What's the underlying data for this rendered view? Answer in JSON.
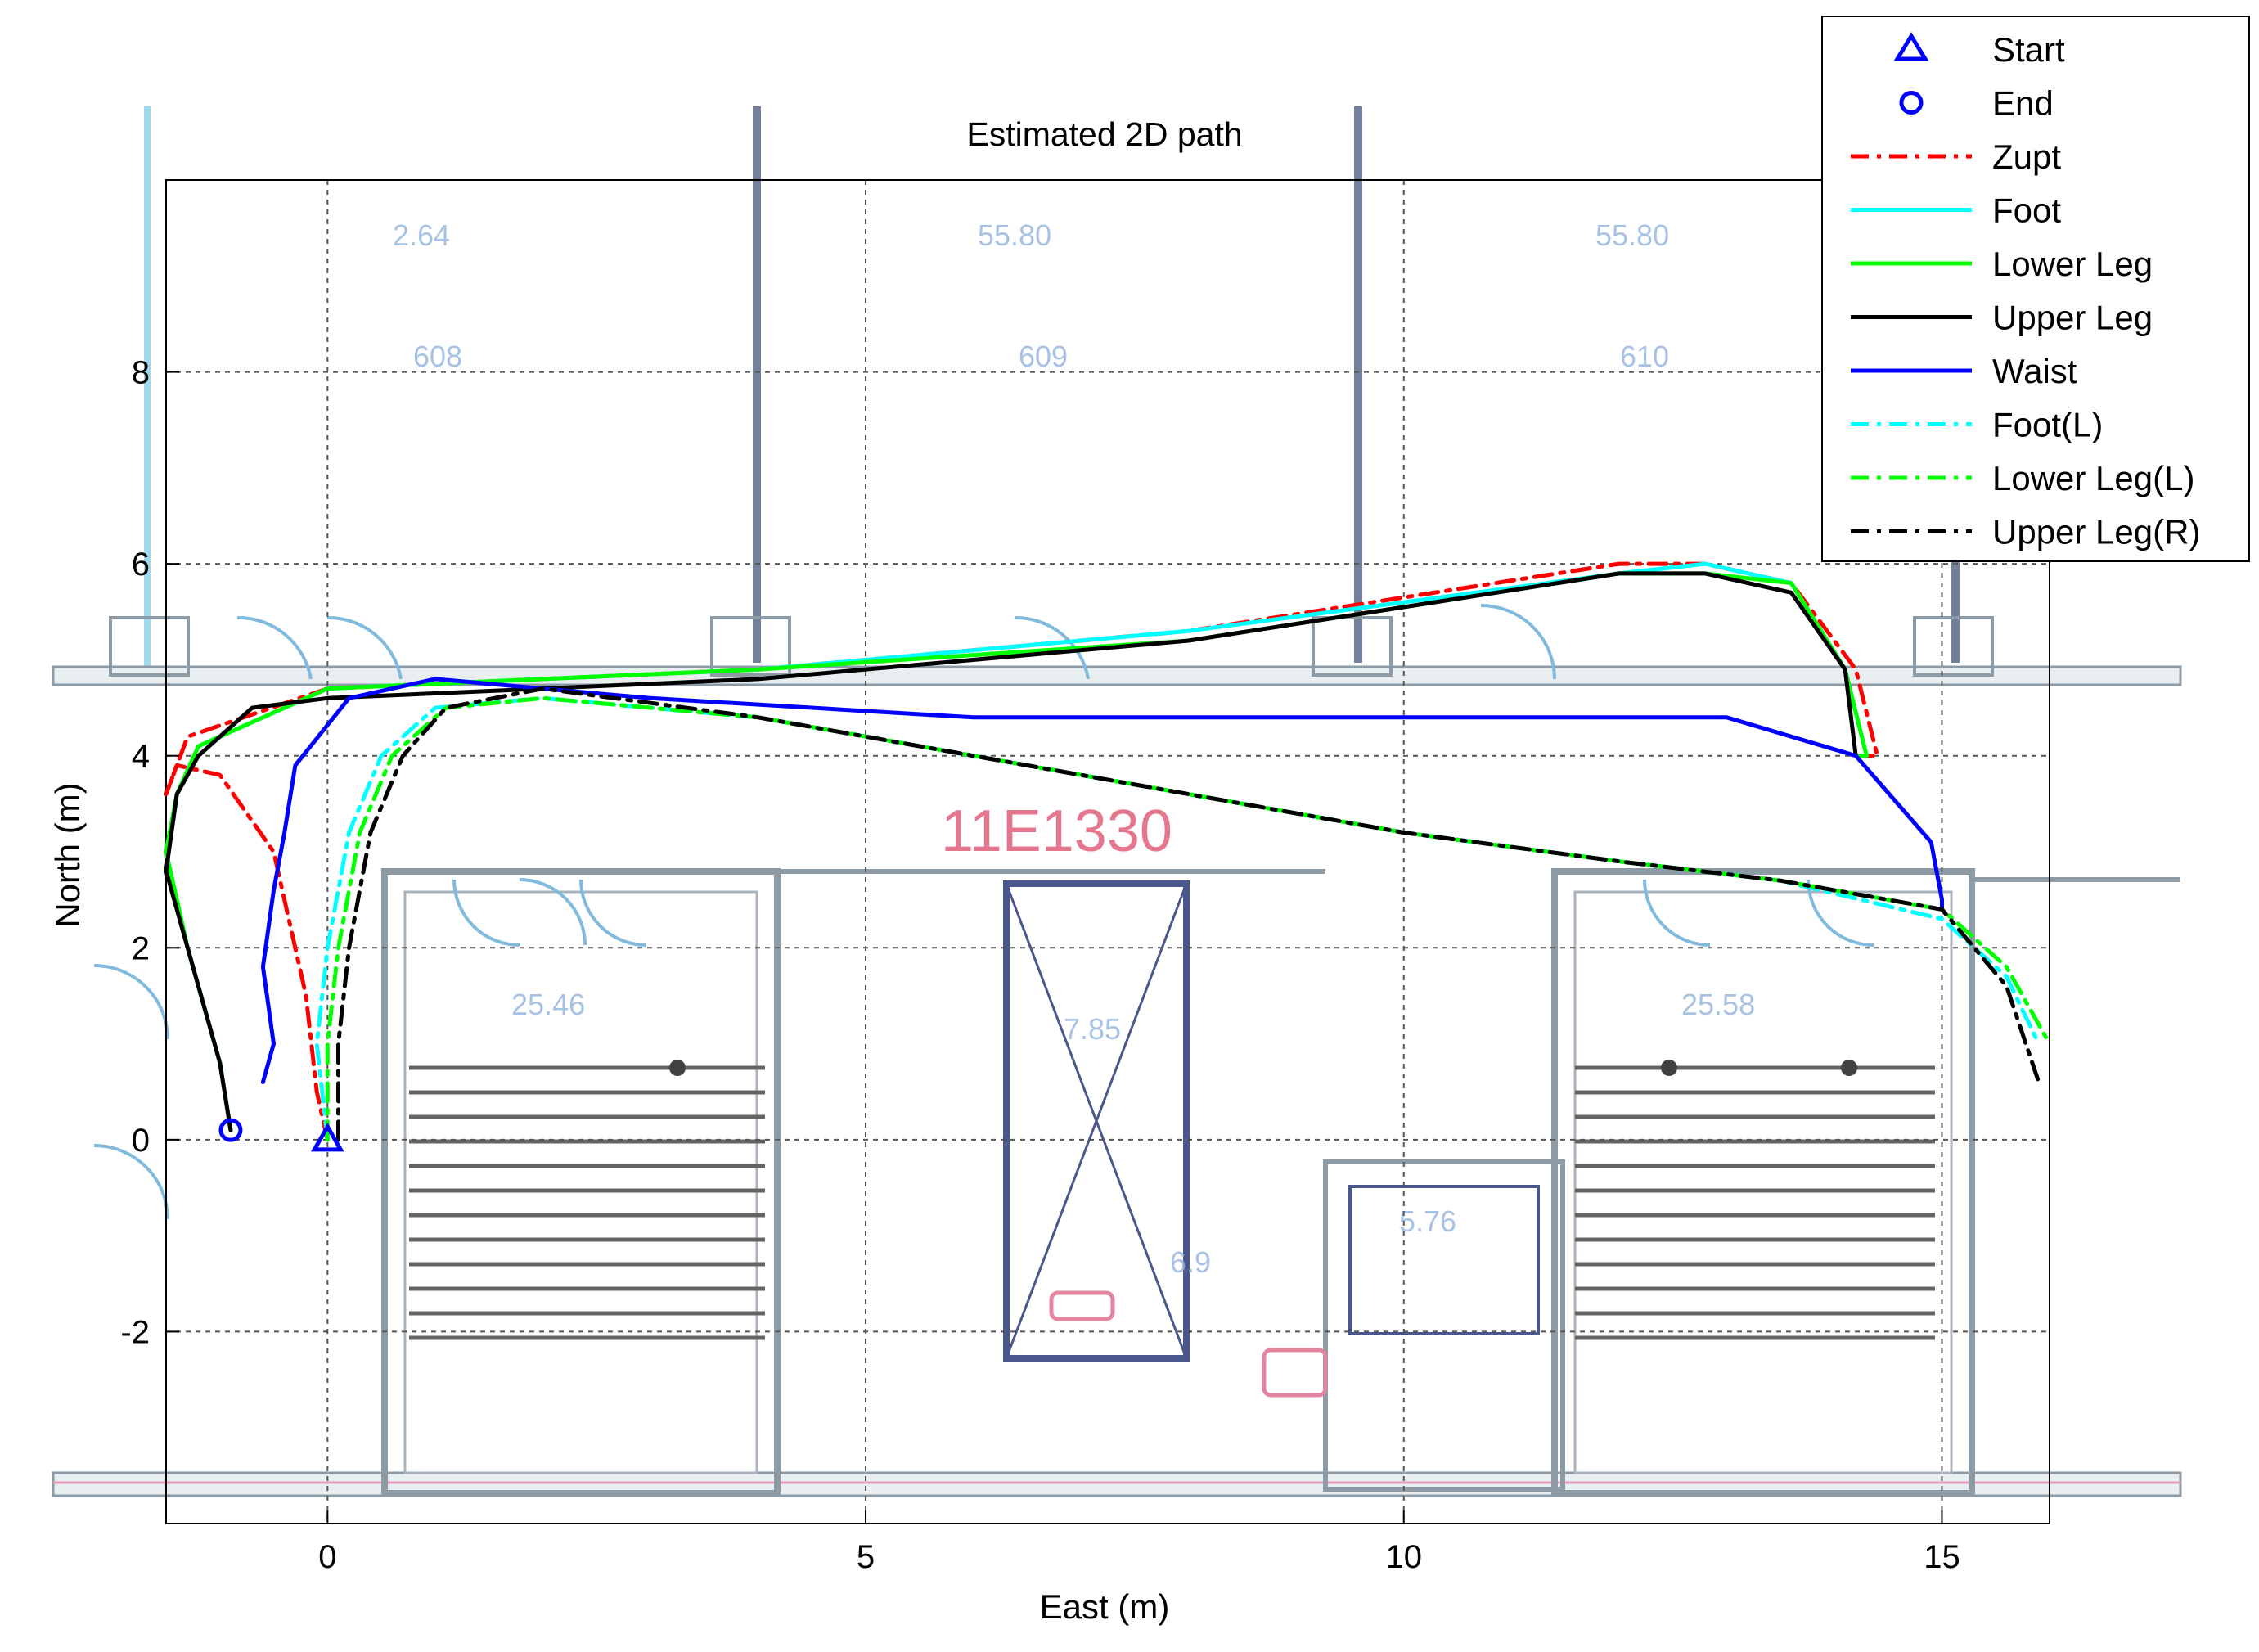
{
  "chart_data": {
    "type": "line",
    "title": "Estimated 2D path",
    "xlabel": "East (m)",
    "ylabel": "North (m)",
    "xlim": [
      -1.5,
      16
    ],
    "ylim": [
      -4,
      10
    ],
    "xticks": [
      "0",
      "5",
      "10",
      "15"
    ],
    "yticks": [
      "-2",
      "0",
      "2",
      "4",
      "6",
      "8"
    ],
    "grid": true,
    "background": "floor plan image",
    "legend_position": "top-right",
    "markers": [
      {
        "name": "Start",
        "symbol": "triangle",
        "color": "#0000ff",
        "x": 0.0,
        "y": 0.0
      },
      {
        "name": "End",
        "symbol": "circle",
        "color": "#0000ff",
        "x": -0.9,
        "y": 0.1
      }
    ],
    "series": [
      {
        "name": "Zupt",
        "color": "#ff0000",
        "style": "dashdot",
        "x": [
          0,
          -0.1,
          -0.2,
          -0.5,
          -1.0,
          -1.4,
          -1.5,
          -1.3,
          0,
          4,
          8,
          12,
          12.8,
          13.6,
          14.2,
          14.4,
          14.2
        ],
        "y": [
          0,
          0.5,
          1.5,
          3.0,
          3.8,
          3.9,
          3.6,
          4.2,
          4.7,
          4.9,
          5.3,
          6.0,
          6.0,
          5.8,
          4.9,
          4.0,
          4.0
        ]
      },
      {
        "name": "Foot",
        "color": "#00ffff",
        "style": "solid",
        "x": [
          -0.9,
          -1.0,
          -1.3,
          -1.5,
          -1.4,
          -1.2,
          0,
          4,
          8,
          12,
          12.8,
          13.6,
          14.1,
          14.3,
          14.2
        ],
        "y": [
          0.1,
          0.8,
          2.0,
          3.0,
          3.6,
          4.1,
          4.7,
          4.9,
          5.3,
          5.9,
          6.0,
          5.8,
          4.9,
          4.0,
          4.0
        ]
      },
      {
        "name": "Lower Leg",
        "color": "#00ff00",
        "style": "solid",
        "x": [
          -0.9,
          -1.0,
          -1.3,
          -1.5,
          -1.4,
          -1.2,
          0,
          4,
          8,
          12,
          12.8,
          13.6,
          14.1,
          14.3,
          14.2
        ],
        "y": [
          0.1,
          0.8,
          2.0,
          3.0,
          3.6,
          4.1,
          4.7,
          4.9,
          5.2,
          5.9,
          5.9,
          5.8,
          4.9,
          4.0,
          4.0
        ]
      },
      {
        "name": "Upper Leg",
        "color": "#000000",
        "style": "solid",
        "x": [
          -0.9,
          -1.0,
          -1.3,
          -1.5,
          -1.4,
          -1.2,
          -0.7,
          0,
          4,
          8,
          12,
          12.8,
          13.6,
          14.1,
          14.2,
          14.2
        ],
        "y": [
          0.1,
          0.8,
          2.0,
          2.8,
          3.6,
          4.0,
          4.5,
          4.6,
          4.8,
          5.2,
          5.9,
          5.9,
          5.7,
          4.9,
          4.0,
          4.0
        ]
      },
      {
        "name": "Waist",
        "color": "#0000ff",
        "style": "solid",
        "x": [
          -0.6,
          -0.5,
          -0.6,
          -0.5,
          -0.4,
          -0.3,
          0.2,
          1,
          3,
          6,
          10,
          13,
          14.2,
          14.9,
          15.0,
          15.0
        ],
        "y": [
          0.6,
          1.0,
          1.8,
          2.6,
          3.2,
          3.9,
          4.6,
          4.8,
          4.6,
          4.4,
          4.4,
          4.4,
          4.0,
          3.1,
          2.5,
          2.4
        ]
      },
      {
        "name": "Foot(L)",
        "color": "#00ffff",
        "style": "dashdot",
        "x": [
          0,
          -0.1,
          0,
          0.2,
          0.5,
          1,
          2,
          4,
          6,
          8,
          10,
          12,
          13.5,
          15,
          15.6,
          15.9
        ],
        "y": [
          0,
          1.0,
          2.0,
          3.2,
          4.0,
          4.5,
          4.6,
          4.4,
          4.0,
          3.6,
          3.2,
          2.9,
          2.7,
          2.3,
          1.7,
          1.0
        ]
      },
      {
        "name": "Lower Leg(L)",
        "color": "#00ff00",
        "style": "dashdot",
        "x": [
          0,
          0,
          0.1,
          0.3,
          0.6,
          1.1,
          2,
          4,
          6,
          8,
          10,
          12,
          13.5,
          15,
          15.6,
          16.0
        ],
        "y": [
          0,
          1.0,
          2.0,
          3.2,
          4.0,
          4.5,
          4.6,
          4.4,
          4.0,
          3.6,
          3.2,
          2.9,
          2.7,
          2.4,
          1.8,
          1.0
        ]
      },
      {
        "name": "Upper Leg(R)",
        "color": "#000000",
        "style": "dashdot",
        "x": [
          0.1,
          0.1,
          0.2,
          0.4,
          0.7,
          1.1,
          2,
          4,
          6,
          8,
          10,
          12,
          13.5,
          15,
          15.6,
          15.9
        ],
        "y": [
          0,
          1.0,
          2.0,
          3.2,
          4.0,
          4.5,
          4.7,
          4.4,
          4.0,
          3.6,
          3.2,
          2.9,
          2.7,
          2.4,
          1.6,
          0.6
        ]
      }
    ],
    "legend": [
      "Start",
      "End",
      "Zupt",
      "Foot",
      "Lower Leg",
      "Upper Leg",
      "Waist",
      "Foot(L)",
      "Lower Leg(L)",
      "Upper Leg(R)"
    ],
    "floorplan_text": [
      "11E1330",
      "25.46",
      "25.58",
      "5.76",
      "6.9",
      "7.85",
      "2.64",
      "55.80",
      "55.80",
      "55.80",
      "608",
      "609",
      "610"
    ]
  }
}
